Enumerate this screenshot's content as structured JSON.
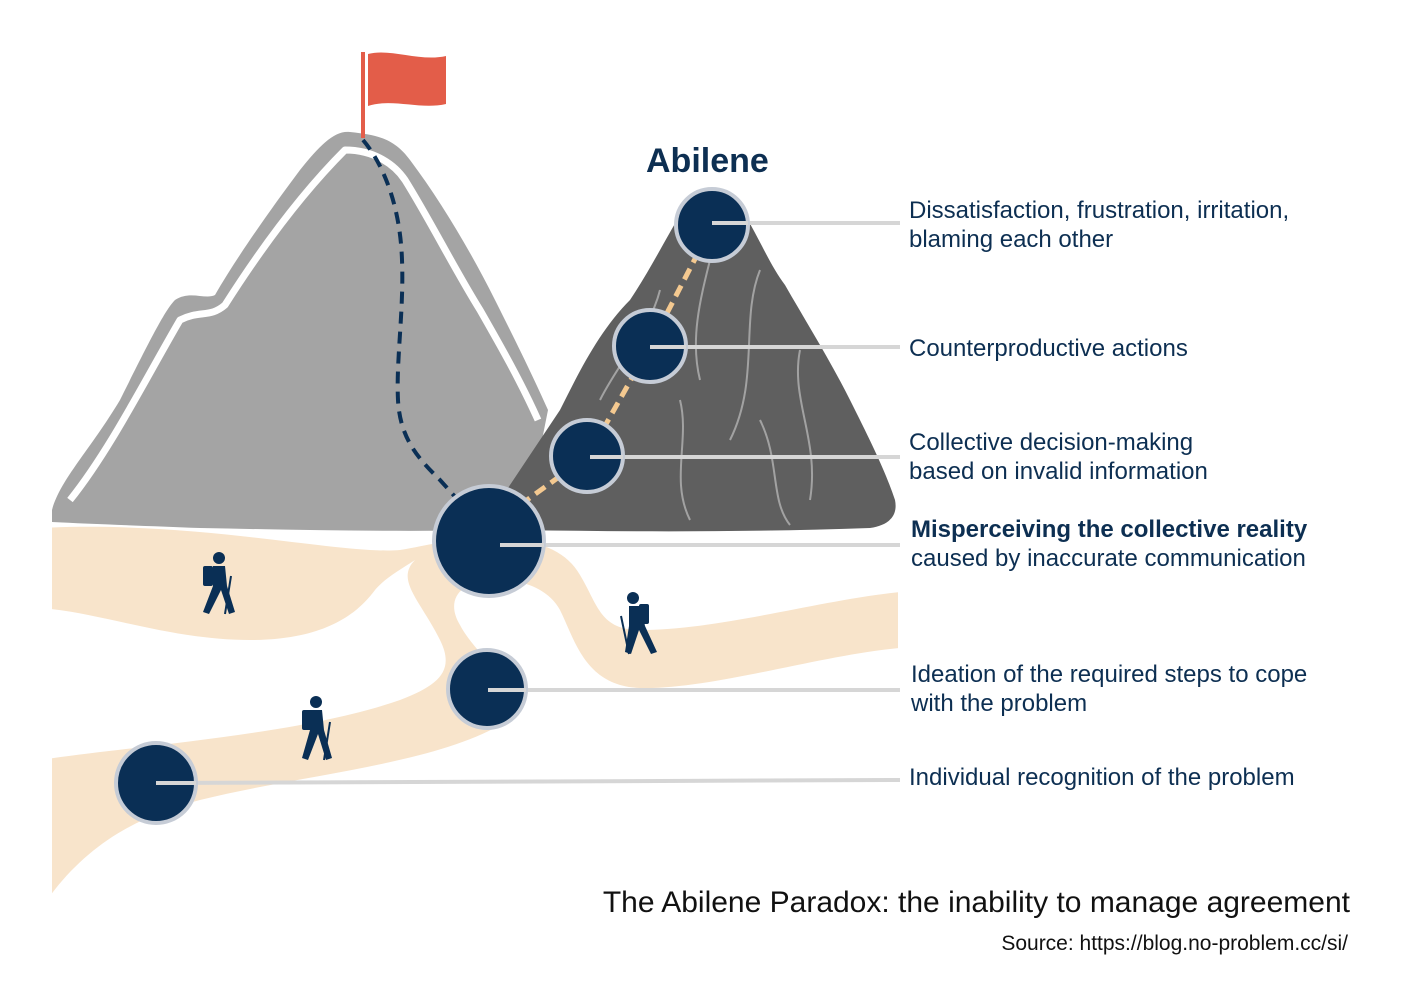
{
  "diagram": {
    "goal_label": "Abilene",
    "stages": [
      {
        "id": "s6",
        "line1": "Dissatisfaction, frustration, irritation,",
        "line2": "blaming each other",
        "bold": false
      },
      {
        "id": "s5",
        "line1": "Counterproductive actions",
        "line2": "",
        "bold": false
      },
      {
        "id": "s4",
        "line1": "Collective decision-making",
        "line2": "based on invalid information",
        "bold": false
      },
      {
        "id": "s3",
        "line1": "Misperceiving the collective reality",
        "line2": "caused by inaccurate communication",
        "bold": true
      },
      {
        "id": "s2",
        "line1": "Ideation of the required steps to cope",
        "line2": "with the problem",
        "bold": false
      },
      {
        "id": "s1",
        "line1": "Individual recognition of the problem",
        "line2": "",
        "bold": false
      }
    ],
    "caption": "The Abilene Paradox: the inability to manage agreement",
    "source": "Source: https://blog.no-problem.cc/si/"
  },
  "colors": {
    "navy": "#0a2f55",
    "path": "#f8e4cb",
    "flag": "#e35d49",
    "mountain_light": "#a4a4a4",
    "mountain_dark": "#5f5f5f",
    "connector": "#d6d6d6",
    "node_ring": "#c6ccd6"
  }
}
